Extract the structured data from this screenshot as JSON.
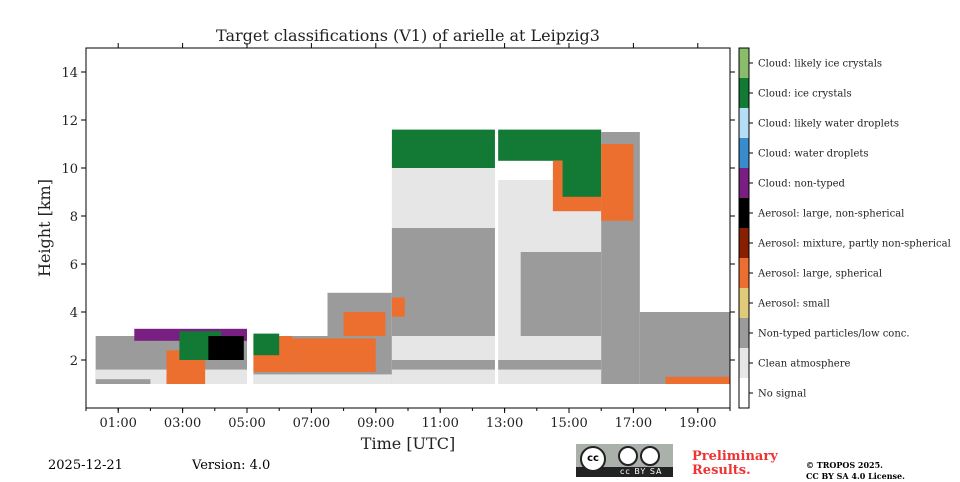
{
  "chart_data": {
    "type": "heatmap",
    "title": "Target classifications (V1) of arielle at Leipzig3",
    "xlabel": "Time [UTC]",
    "ylabel": "Height [km]",
    "xlim": [
      0,
      20
    ],
    "ylim": [
      0,
      15
    ],
    "xticks": [
      {
        "v": 1,
        "label": "01:00"
      },
      {
        "v": 3,
        "label": "03:00"
      },
      {
        "v": 5,
        "label": "05:00"
      },
      {
        "v": 7,
        "label": "07:00"
      },
      {
        "v": 9,
        "label": "09:00"
      },
      {
        "v": 11,
        "label": "11:00"
      },
      {
        "v": 13,
        "label": "13:00"
      },
      {
        "v": 15,
        "label": "15:00"
      },
      {
        "v": 17,
        "label": "17:00"
      },
      {
        "v": 19,
        "label": "19:00"
      }
    ],
    "yticks": [
      {
        "v": 2,
        "label": "2"
      },
      {
        "v": 4,
        "label": "4"
      },
      {
        "v": 6,
        "label": "6"
      },
      {
        "v": 8,
        "label": "8"
      },
      {
        "v": 10,
        "label": "10"
      },
      {
        "v": 12,
        "label": "12"
      },
      {
        "v": 14,
        "label": "14"
      }
    ],
    "classes": [
      {
        "label": "Cloud: likely ice crystals",
        "color": "#8ABD6B"
      },
      {
        "label": "Cloud: ice crystals",
        "color": "#127A35"
      },
      {
        "label": "Cloud: likely water droplets",
        "color": "#B5DDF5"
      },
      {
        "label": "Cloud: water droplets",
        "color": "#3A8BCB"
      },
      {
        "label": "Cloud: non-typed",
        "color": "#7A1F82"
      },
      {
        "label": "Aerosol: large, non-spherical",
        "color": "#000000"
      },
      {
        "label": "Aerosol: mixture, partly non-spherical",
        "color": "#862000"
      },
      {
        "label": "Aerosol: large, spherical",
        "color": "#EC6F30"
      },
      {
        "label": "Aerosol: small",
        "color": "#E0CC78"
      },
      {
        "label": "Non-typed particles/low conc.",
        "color": "#9B9B9B"
      },
      {
        "label": "Clean atmosphere",
        "color": "#E6E6E6"
      },
      {
        "label": "No signal",
        "color": "#FFFFFF"
      }
    ],
    "regions": [
      {
        "t": [
          0.3,
          5.0
        ],
        "h": [
          1.0,
          3.0
        ],
        "c": 9
      },
      {
        "t": [
          0.3,
          5.0
        ],
        "h": [
          1.2,
          1.6
        ],
        "c": 10
      },
      {
        "t": [
          2.0,
          5.0
        ],
        "h": [
          1.0,
          1.5
        ],
        "c": 10
      },
      {
        "t": [
          2.5,
          3.7
        ],
        "h": [
          1.0,
          2.4
        ],
        "c": 7
      },
      {
        "t": [
          1.5,
          5.0
        ],
        "h": [
          2.8,
          3.3
        ],
        "c": 4
      },
      {
        "t": [
          2.9,
          4.2
        ],
        "h": [
          2.0,
          3.2
        ],
        "c": 1
      },
      {
        "t": [
          3.8,
          4.9
        ],
        "h": [
          2.0,
          3.0
        ],
        "c": 5
      },
      {
        "t": [
          5.2,
          9.5
        ],
        "h": [
          1.0,
          3.0
        ],
        "c": 9
      },
      {
        "t": [
          5.2,
          9.5
        ],
        "h": [
          1.0,
          1.4
        ],
        "c": 10
      },
      {
        "t": [
          5.2,
          6.4
        ],
        "h": [
          1.5,
          3.0
        ],
        "c": 7
      },
      {
        "t": [
          5.2,
          6.0
        ],
        "h": [
          2.2,
          3.1
        ],
        "c": 1
      },
      {
        "t": [
          6.4,
          9.0
        ],
        "h": [
          1.5,
          2.9
        ],
        "c": 7
      },
      {
        "t": [
          7.5,
          9.5
        ],
        "h": [
          3.0,
          4.8
        ],
        "c": 9
      },
      {
        "t": [
          8.0,
          9.3
        ],
        "h": [
          3.0,
          4.0
        ],
        "c": 7
      },
      {
        "t": [
          9.5,
          12.7
        ],
        "h": [
          1.0,
          11.0
        ],
        "c": 10
      },
      {
        "t": [
          9.5,
          12.7
        ],
        "h": [
          1.6,
          2.0
        ],
        "c": 9
      },
      {
        "t": [
          9.5,
          12.7
        ],
        "h": [
          3.0,
          7.5
        ],
        "c": 9
      },
      {
        "t": [
          9.5,
          9.9
        ],
        "h": [
          3.8,
          4.6
        ],
        "c": 7
      },
      {
        "t": [
          9.5,
          12.7
        ],
        "h": [
          10.0,
          11.6
        ],
        "c": 1
      },
      {
        "t": [
          12.8,
          16.0
        ],
        "h": [
          1.0,
          9.5
        ],
        "c": 10
      },
      {
        "t": [
          12.8,
          16.0
        ],
        "h": [
          1.6,
          2.0
        ],
        "c": 9
      },
      {
        "t": [
          13.5,
          16.0
        ],
        "h": [
          3.0,
          6.5
        ],
        "c": 9
      },
      {
        "t": [
          12.8,
          16.0
        ],
        "h": [
          10.3,
          11.6
        ],
        "c": 1
      },
      {
        "t": [
          14.5,
          16.0
        ],
        "h": [
          8.2,
          10.3
        ],
        "c": 7
      },
      {
        "t": [
          14.8,
          16.0
        ],
        "h": [
          8.8,
          10.5
        ],
        "c": 1
      },
      {
        "t": [
          16.0,
          17.2
        ],
        "h": [
          1.0,
          11.5
        ],
        "c": 9
      },
      {
        "t": [
          16.0,
          17.0
        ],
        "h": [
          7.8,
          11.0
        ],
        "c": 7
      },
      {
        "t": [
          17.2,
          20.0
        ],
        "h": [
          1.0,
          4.0
        ],
        "c": 9
      },
      {
        "t": [
          18.0,
          20.0
        ],
        "h": [
          1.0,
          1.3
        ],
        "c": 7
      }
    ]
  },
  "footer": {
    "date": "2025-12-21",
    "version": "Version: 4.0",
    "preliminary": "Preliminary Results.",
    "copyright": "© TROPOS 2025.",
    "license": "CC BY SA 4.0 License.",
    "cc_badge": "cc BY SA"
  }
}
